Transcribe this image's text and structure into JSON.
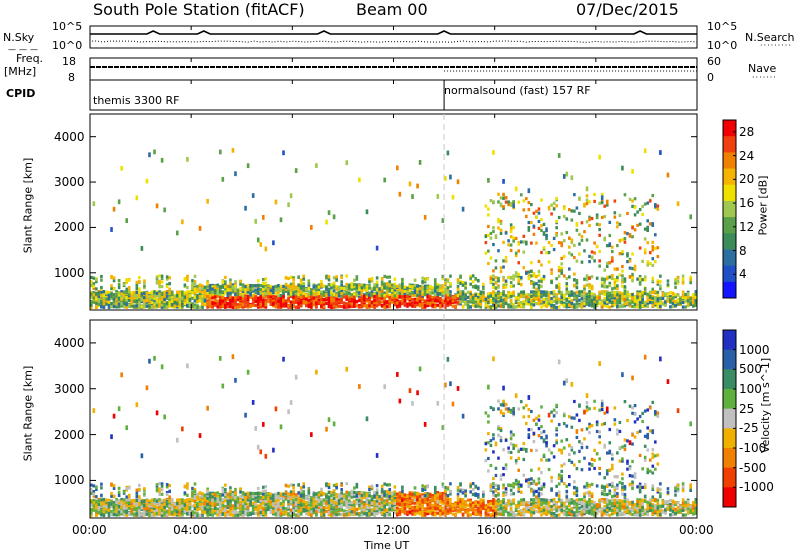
{
  "header": {
    "station": "South Pole Station (fitACF)",
    "beam": "Beam 00",
    "date": "07/Dec/2015"
  },
  "summary_panels": {
    "nsky_label": "N.Sky",
    "nsearch_label": "N.Search",
    "noise_ticks_left": [
      "10^5",
      "10^0"
    ],
    "noise_ticks_right": [
      "10^5",
      "10^0"
    ],
    "freq_label_top": "Freq.",
    "freq_label_unit": "[MHz]",
    "freq_ticks": [
      "18",
      "8"
    ],
    "nave_label": "Nave",
    "nave_ticks": [
      "60",
      "0"
    ],
    "cpid_label": "CPID",
    "cpid_segments": [
      {
        "name": "themis 3300 RF",
        "start_hour": 0
      },
      {
        "name": "normalsound (fast) 157 RF",
        "start_hour": 14
      }
    ]
  },
  "chart_data": [
    {
      "type": "heatmap",
      "title": "",
      "quantity": "Power",
      "xlabel": "",
      "ylabel": "Slant Range [km]",
      "x_unit": "hours UT",
      "xlim": [
        0,
        24
      ],
      "ylim": [
        180,
        4500
      ],
      "yticks": [
        1000,
        2000,
        3000,
        4000
      ],
      "grid": false,
      "colorbar": {
        "label": "Power [dB]",
        "ticks": [
          4,
          8,
          12,
          16,
          20,
          24,
          28
        ],
        "range": [
          0,
          30
        ],
        "colors": [
          "#1414ff",
          "#2050c8",
          "#2c6ea0",
          "#3c8c5a",
          "#5aa04a",
          "#a0c850",
          "#f0e000",
          "#f5b400",
          "#f08000",
          "#f04010",
          "#f00000"
        ]
      }
    },
    {
      "type": "heatmap",
      "title": "",
      "quantity": "Velocity",
      "xlabel": "Time UT",
      "ylabel": "Slant Range [km]",
      "x_unit": "hours UT",
      "xlim": [
        0,
        24
      ],
      "ylim": [
        180,
        4500
      ],
      "yticks": [
        1000,
        2000,
        3000,
        4000
      ],
      "xticks": [
        "00:00",
        "04:00",
        "08:00",
        "12:00",
        "16:00",
        "20:00",
        "00:00"
      ],
      "grid": false,
      "colorbar": {
        "label": "Velocity [m s^-1]",
        "ticks": [
          "1000",
          "500",
          "100",
          "25",
          "-25",
          "-100",
          "-500",
          "-1000"
        ],
        "colors": [
          "#2030c0",
          "#2a60a8",
          "#3a8c64",
          "#60b040",
          "#c0c0c0",
          "#f0b000",
          "#f08000",
          "#f04000",
          "#f00000"
        ]
      }
    }
  ],
  "colors": {
    "divider": "#c8c8c8",
    "axis": "#000000"
  }
}
